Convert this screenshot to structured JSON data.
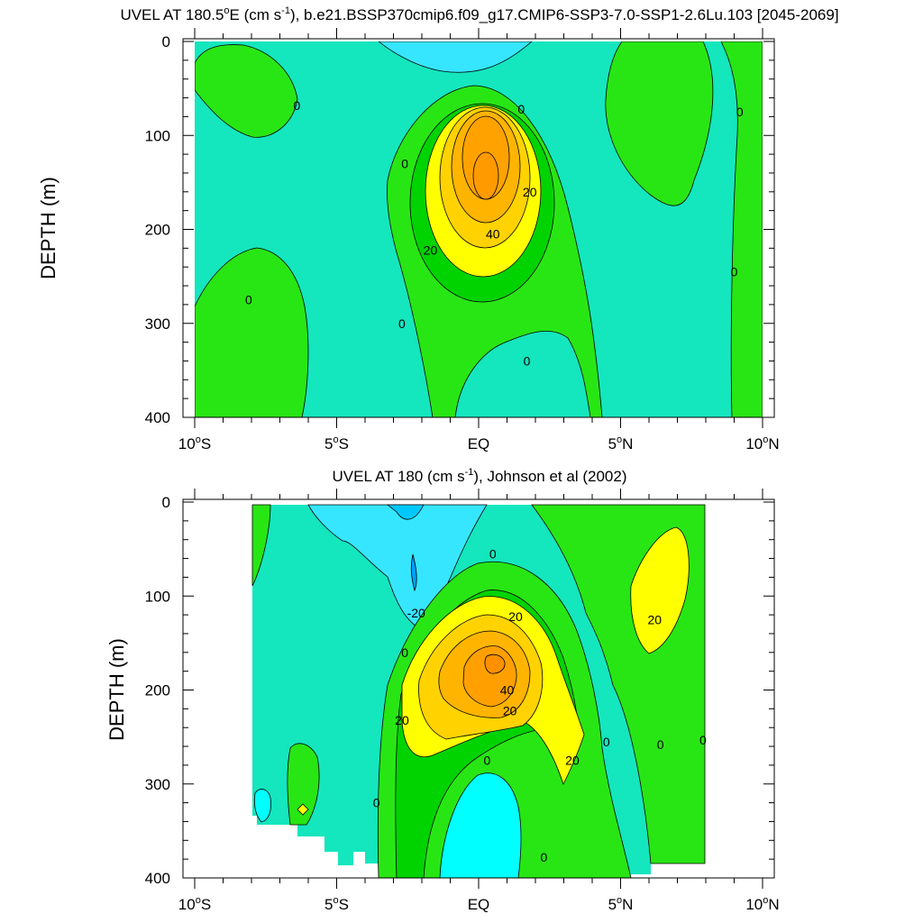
{
  "chart_data": [
    {
      "type": "contour",
      "title": "UVEL AT 180.5°E (cm s⁻¹), b.e21.BSSP370cmip6.f09_g17.CMIP6-SSP3-7.0-SSP1-2.6Lu.103 [2045-2069]",
      "title_main": "UVEL AT 180.5",
      "title_deg": "o",
      "title_mid": "E (cm s",
      "title_sup": "-1",
      "title_tail": "), b.e21.BSSP370cmip6.f09_g17.CMIP6-SSP3-7.0-SSP1-2.6Lu.103 [2045-2069]",
      "ylabel": "DEPTH (m)",
      "xlabel": "",
      "xlim": [
        -10,
        10
      ],
      "ylim": [
        400,
        0
      ],
      "xtick_labels": [
        {
          "base": "10",
          "deg": "o",
          "hem": "S"
        },
        {
          "base": "5",
          "deg": "o",
          "hem": "S"
        },
        {
          "base": "EQ",
          "deg": "",
          "hem": ""
        },
        {
          "base": "5",
          "deg": "o",
          "hem": "N"
        },
        {
          "base": "10",
          "deg": "o",
          "hem": "N"
        }
      ],
      "xticks": [
        -10,
        -5,
        0,
        5,
        10
      ],
      "ytick_labels": [
        "0",
        "100",
        "200",
        "300",
        "400"
      ],
      "yticks": [
        0,
        100,
        200,
        300,
        400
      ],
      "contour_interval": 10,
      "colors": {
        "neg10": "#00ffbe",
        "zero": "#28e614",
        "pos10": "#00d300",
        "pos20": "#ffff00",
        "pos30": "#ffd200",
        "pos40": "#ffb400",
        "pos50": "#ff9a00",
        "neg20": "#36e6ff",
        "neg30": "#00a0ff",
        "background": "#14e6be"
      },
      "features": [
        {
          "kind": "jet-core",
          "x": 0.2,
          "depth": 145,
          "max": 58
        },
        {
          "kind": "positive-lobe",
          "x": 7.0,
          "depth": 120,
          "max": 8
        },
        {
          "kind": "positive-lobe",
          "x": -9.0,
          "depth": 70,
          "max": 5
        },
        {
          "kind": "positive-lobe",
          "x": -9.0,
          "depth": 360,
          "max": 5
        },
        {
          "kind": "negative-surface",
          "x": 0.0,
          "depth": 15,
          "min": -15
        }
      ],
      "contour_labels": [
        {
          "text": "0",
          "x": -6.4,
          "depth": 68
        },
        {
          "text": "0",
          "x": 1.5,
          "depth": 72
        },
        {
          "text": "0",
          "x": 9.2,
          "depth": 75
        },
        {
          "text": "0",
          "x": -2.6,
          "depth": 130
        },
        {
          "text": "20",
          "x": 1.8,
          "depth": 160
        },
        {
          "text": "40",
          "x": 0.5,
          "depth": 205
        },
        {
          "text": "20",
          "x": -1.7,
          "depth": 222
        },
        {
          "text": "0",
          "x": 9.0,
          "depth": 245
        },
        {
          "text": "0",
          "x": -8.1,
          "depth": 275
        },
        {
          "text": "0",
          "x": -2.7,
          "depth": 300
        },
        {
          "text": "0",
          "x": 1.7,
          "depth": 340
        }
      ]
    },
    {
      "type": "contour",
      "title": "UVEL AT 180 (cm s⁻¹), Johnson et al (2002)",
      "title_main": "UVEL AT 180 (cm s",
      "title_sup": "-1",
      "title_tail": "), Johnson et al (2002)",
      "ylabel": "DEPTH (m)",
      "xlabel": "",
      "xlim": [
        -10,
        10
      ],
      "ylim": [
        400,
        0
      ],
      "xticks": [
        -10,
        -5,
        0,
        5,
        10
      ],
      "yticks": [
        0,
        100,
        200,
        300,
        400
      ],
      "ytick_labels": [
        "0",
        "100",
        "200",
        "300",
        "400"
      ],
      "contour_labels": [
        {
          "text": "0",
          "x": 0.5,
          "depth": 55
        },
        {
          "text": "-20",
          "x": -2.2,
          "depth": 118
        },
        {
          "text": "20",
          "x": 1.3,
          "depth": 122
        },
        {
          "text": "20",
          "x": 6.2,
          "depth": 125
        },
        {
          "text": "0",
          "x": -2.6,
          "depth": 160
        },
        {
          "text": "40",
          "x": 1.0,
          "depth": 200
        },
        {
          "text": "20",
          "x": 1.1,
          "depth": 222
        },
        {
          "text": "20",
          "x": -2.7,
          "depth": 232
        },
        {
          "text": "0",
          "x": 4.5,
          "depth": 255
        },
        {
          "text": "0",
          "x": 6.4,
          "depth": 258
        },
        {
          "text": "0",
          "x": 7.9,
          "depth": 253
        },
        {
          "text": "20",
          "x": 3.3,
          "depth": 275
        },
        {
          "text": "0",
          "x": 0.3,
          "depth": 275
        },
        {
          "text": "0",
          "x": -3.6,
          "depth": 320
        },
        {
          "text": "0",
          "x": 2.3,
          "depth": 378
        }
      ]
    }
  ]
}
